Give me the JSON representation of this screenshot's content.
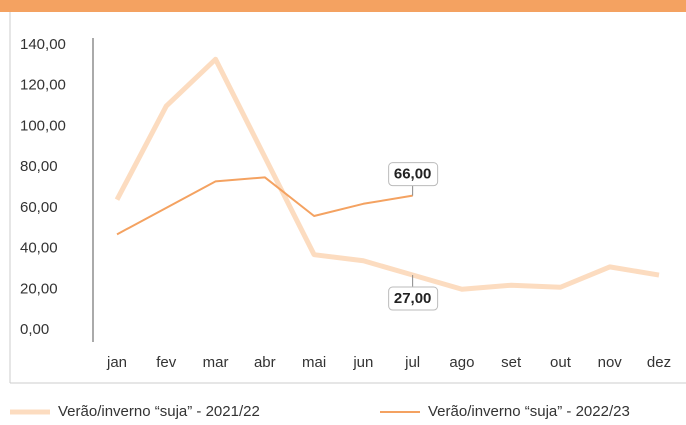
{
  "chart_data": {
    "type": "line",
    "categories": [
      "jan",
      "fev",
      "mar",
      "abr",
      "mai",
      "jun",
      "jul",
      "ago",
      "set",
      "out",
      "nov",
      "dez"
    ],
    "series": [
      {
        "name": "Verão/inverno “suja” - 2021/22",
        "color": "#fcdcc0",
        "values": [
          64,
          110,
          133,
          85,
          37,
          34,
          27,
          20,
          22,
          21,
          31,
          27
        ],
        "value_labels": [
          null,
          null,
          null,
          null,
          null,
          null,
          "27,00",
          null,
          null,
          null,
          null,
          null
        ]
      },
      {
        "name": "Verão/inverno “suja” - 2022/23",
        "color": "#f4a261",
        "values": [
          47,
          60,
          73,
          75,
          56,
          62,
          66,
          null,
          null,
          null,
          null,
          null
        ],
        "value_labels": [
          null,
          null,
          null,
          null,
          null,
          null,
          "66,00",
          null,
          null,
          null,
          null,
          null
        ]
      }
    ],
    "ylim": [
      0,
      140
    ],
    "yticks": [
      {
        "value": 0,
        "label": "0,00"
      },
      {
        "value": 20,
        "label": "20,00"
      },
      {
        "value": 40,
        "label": "40,00"
      },
      {
        "value": 60,
        "label": "60,00"
      },
      {
        "value": 80,
        "label": "80,00"
      },
      {
        "value": 100,
        "label": "100,00"
      },
      {
        "value": 120,
        "label": "120,00"
      },
      {
        "value": 140,
        "label": "140,00"
      }
    ]
  }
}
